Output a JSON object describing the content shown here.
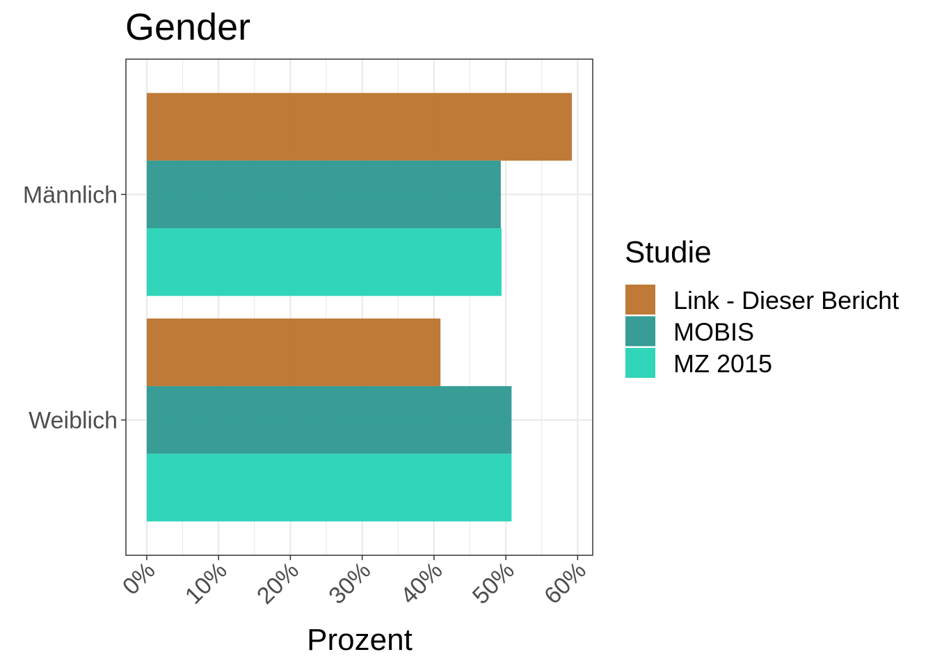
{
  "chart_data": {
    "type": "bar",
    "orientation": "horizontal",
    "title": "Gender",
    "xlabel": "Prozent",
    "ylabel": "",
    "categories": [
      "Männlich",
      "Weiblich"
    ],
    "x_ticks": [
      "0%",
      "10%",
      "20%",
      "30%",
      "40%",
      "50%",
      "60%"
    ],
    "xlim": [
      -0.029,
      0.621
    ],
    "grid": true,
    "legend": {
      "title": "Studie",
      "placement": "right"
    },
    "series": [
      {
        "name": "Link - Dieser Bericht",
        "color": "#b86f25",
        "values": [
          0.592,
          0.409
        ]
      },
      {
        "name": "MOBIS",
        "color": "#26958d",
        "values": [
          0.493,
          0.508
        ]
      },
      {
        "name": "MZ 2015",
        "color": "#1ed1b4",
        "values": [
          0.494,
          0.508
        ]
      }
    ]
  }
}
